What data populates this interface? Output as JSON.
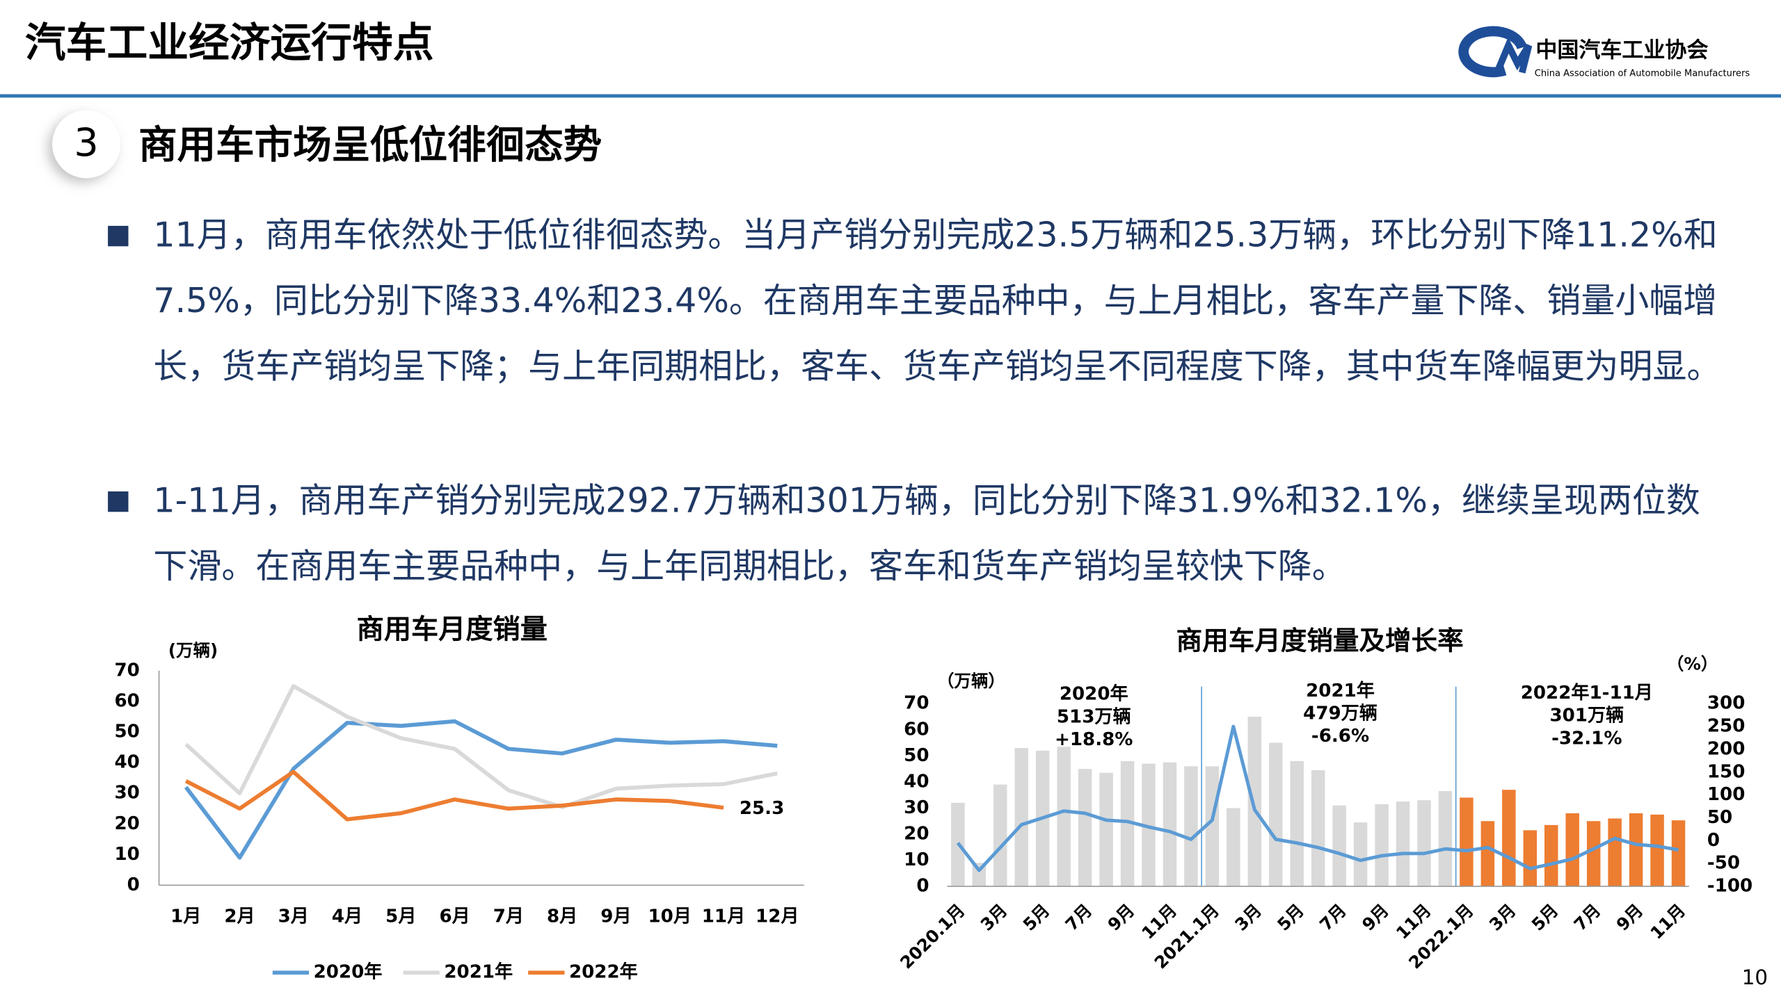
{
  "header": {
    "title": "汽车工业经济运行特点",
    "org": "中国汽车工业协会",
    "org_en": "China Association of Automobile Manufacturers"
  },
  "section": {
    "number": "3",
    "title": "商用车市场呈低位徘徊态势"
  },
  "bullets": [
    "11月，商用车依然处于低位徘徊态势。当月产销分别完成23.5万辆和25.3万辆，环比分别下降11.2%和7.5%，同比分别下降33.4%和23.4%。在商用车主要品种中，与上月相比，客车产量下降、销量小幅增长，货车产销均呈下降；与上年同期相比，客车、货车产销均呈不同程度下降，其中货车降幅更为明显。",
    "1-11月，商用车产销分别完成292.7万辆和301万辆，同比分别下降31.9%和32.1%，继续呈现两位数下滑。在商用车主要品种中，与上年同期相比，客车和货车产销均呈较快下降。"
  ],
  "page_number": "10",
  "chart_data": [
    {
      "type": "line",
      "title": "商用车月度销量",
      "y_label": "(万辆)",
      "categories": [
        "1月",
        "2月",
        "3月",
        "4月",
        "5月",
        "6月",
        "7月",
        "8月",
        "9月",
        "10月",
        "11月",
        "12月"
      ],
      "series": [
        {
          "name": "2020年",
          "color": "#5b9bd5",
          "values": [
            32,
            9,
            38,
            53,
            52,
            53.5,
            44.5,
            43,
            47.5,
            46.5,
            47,
            45.5
          ]
        },
        {
          "name": "2021年",
          "color": "#d9d9d9",
          "values": [
            46,
            30,
            65,
            55,
            48,
            44.5,
            31,
            25.5,
            31.5,
            32.5,
            33,
            36.5
          ]
        },
        {
          "name": "2022年",
          "color": "#ed7d31",
          "values": [
            34,
            25,
            37,
            21.5,
            23.5,
            28,
            25,
            26,
            28,
            27.5,
            25.3,
            null
          ]
        }
      ],
      "ylim": [
        0,
        70
      ],
      "yticks": [
        0,
        10,
        20,
        30,
        40,
        50,
        60,
        70
      ],
      "legend": "bottom"
    },
    {
      "type": "combo",
      "title": "商用车月度销量及增长率",
      "y_label": "（万辆）",
      "y2_label": "（%）",
      "categories": [
        "2020.1月",
        null,
        "3月",
        null,
        "5月",
        null,
        "7月",
        null,
        "9月",
        null,
        "11月",
        null,
        "2021.1月",
        null,
        "3月",
        null,
        "5月",
        null,
        "7月",
        null,
        "9月",
        null,
        "11月",
        null,
        "2022.1月",
        null,
        "3月",
        null,
        "5月",
        null,
        "7月",
        null,
        "9月",
        null,
        "11月"
      ],
      "series": [
        {
          "type": "bar",
          "colors": [
            "#d9d9d9",
            "#d9d9d9",
            "#d9d9d9",
            "#d9d9d9",
            "#d9d9d9",
            "#d9d9d9",
            "#d9d9d9",
            "#d9d9d9",
            "#d9d9d9",
            "#d9d9d9",
            "#d9d9d9",
            "#d9d9d9",
            "#d9d9d9",
            "#d9d9d9",
            "#d9d9d9",
            "#d9d9d9",
            "#d9d9d9",
            "#d9d9d9",
            "#d9d9d9",
            "#d9d9d9",
            "#d9d9d9",
            "#d9d9d9",
            "#d9d9d9",
            "#d9d9d9",
            "#ed7d31",
            "#ed7d31",
            "#ed7d31",
            "#ed7d31",
            "#ed7d31",
            "#ed7d31",
            "#ed7d31",
            "#ed7d31",
            "#ed7d31",
            "#ed7d31",
            "#ed7d31"
          ],
          "values": [
            32,
            9,
            39,
            53,
            52,
            53.5,
            45,
            43.5,
            48,
            47,
            47.5,
            46,
            46,
            30,
            65,
            55,
            48,
            44.5,
            31,
            24.5,
            31.5,
            32.5,
            33,
            36.5,
            34,
            25,
            37,
            21.5,
            23.5,
            28,
            25,
            26,
            28,
            27.5,
            25.3
          ]
        },
        {
          "type": "line",
          "axis": "y2",
          "color": "#5b9bd5",
          "values": [
            -5,
            -65,
            -15,
            35,
            50,
            65,
            60,
            45,
            42,
            30,
            20,
            3,
            45,
            250,
            68,
            3,
            -5,
            -15,
            -28,
            -43,
            -33,
            -28,
            -28,
            -18,
            -22,
            -15,
            -37,
            -61,
            -51,
            -40,
            -18,
            5,
            -8,
            -12,
            -20
          ]
        }
      ],
      "ylim": [
        0,
        70
      ],
      "yticks": [
        0,
        10,
        20,
        30,
        40,
        50,
        60,
        70
      ],
      "y2lim": [
        -100,
        300
      ],
      "y2ticks": [
        -100,
        -50,
        0,
        50,
        100,
        150,
        200,
        250,
        300
      ],
      "annotations": [
        {
          "lines": [
            "2020年",
            "513万辆",
            "+18.8%"
          ],
          "colors": [
            "#000",
            "#000",
            "#000"
          ]
        },
        {
          "lines": [
            "2021年",
            "479万辆",
            "-6.6%"
          ],
          "colors": [
            "#000",
            "#000",
            "#e02020"
          ]
        },
        {
          "lines": [
            "2022年1-11月",
            "301万辆",
            "-32.1%"
          ],
          "colors": [
            "#000",
            "#000",
            "#e02020"
          ]
        }
      ]
    }
  ]
}
